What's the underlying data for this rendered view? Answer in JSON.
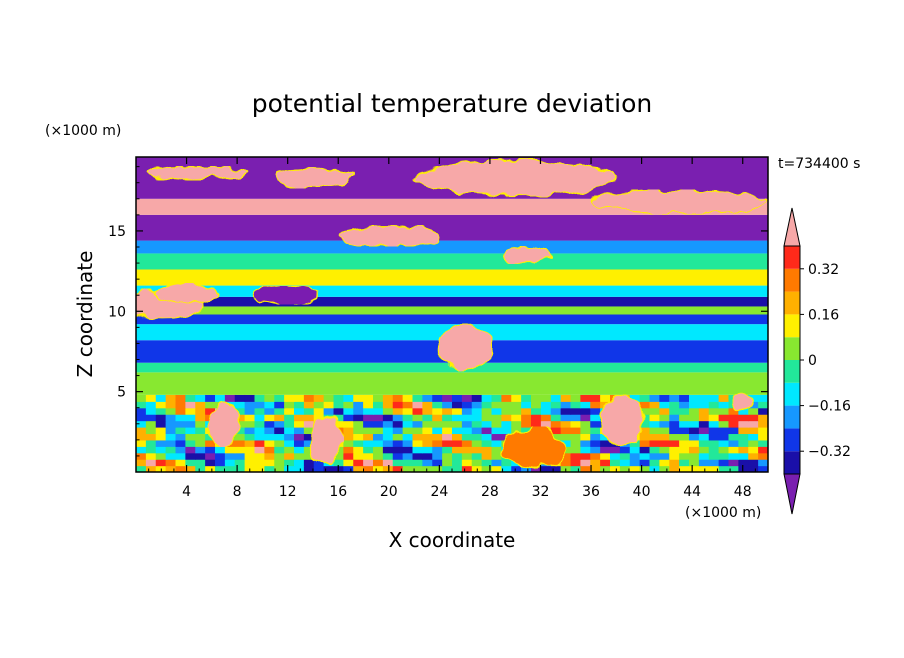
{
  "chart_data": {
    "type": "heatmap",
    "title": "potential temperature deviation",
    "xlabel": "X coordinate",
    "ylabel": "Z coordinate",
    "x_units": "(×1000 m)",
    "y_units": "(×1000 m)",
    "time_label": "t=734400 s",
    "xlim": [
      0,
      50
    ],
    "ylim": [
      0,
      19.6
    ],
    "x_ticks": [
      4,
      8,
      12,
      16,
      20,
      24,
      28,
      32,
      36,
      40,
      44,
      48
    ],
    "y_ticks": [
      5,
      10,
      15
    ],
    "colorbar": {
      "levels": [
        -0.4,
        -0.32,
        -0.24,
        -0.16,
        -0.08,
        0,
        0.08,
        0.16,
        0.24,
        0.32,
        0.4
      ],
      "tick_labels": [
        "0.32",
        "0.16",
        "0",
        "−0.16",
        "−0.32"
      ],
      "tick_values": [
        0.32,
        0.16,
        0,
        -0.16,
        -0.32
      ],
      "colors": {
        "below": "#7a1fb0",
        "bins": [
          "#1a0fa8",
          "#1036e8",
          "#1698ff",
          "#00e8ff",
          "#22e89a",
          "#88e830",
          "#fff000",
          "#ffb000",
          "#ff7a00",
          "#ff2a1a"
        ],
        "above": "#f7a8a8"
      }
    },
    "bands": [
      {
        "z": [
          0,
          4.8
        ],
        "value": "mixed"
      },
      {
        "z": [
          4.8,
          6.2
        ],
        "value": 0.04
      },
      {
        "z": [
          6.2,
          6.8
        ],
        "value": -0.05
      },
      {
        "z": [
          6.8,
          8.2
        ],
        "value": -0.3
      },
      {
        "z": [
          8.2,
          9.2
        ],
        "value": -0.1
      },
      {
        "z": [
          9.2,
          9.8
        ],
        "value": -0.25
      },
      {
        "z": [
          9.8,
          10.3
        ],
        "value": 0.06
      },
      {
        "z": [
          10.3,
          10.9
        ],
        "value": -0.36
      },
      {
        "z": [
          10.9,
          11.6
        ],
        "value": -0.12
      },
      {
        "z": [
          11.6,
          12.6
        ],
        "value": 0.1
      },
      {
        "z": [
          12.6,
          13.6
        ],
        "value": -0.02
      },
      {
        "z": [
          13.6,
          14.4
        ],
        "value": -0.18
      },
      {
        "z": [
          14.4,
          16.0
        ],
        "value": -0.44
      },
      {
        "z": [
          16.0,
          17.0
        ],
        "value": 0.45
      },
      {
        "z": [
          17.0,
          19.6
        ],
        "value": -0.44
      }
    ]
  }
}
